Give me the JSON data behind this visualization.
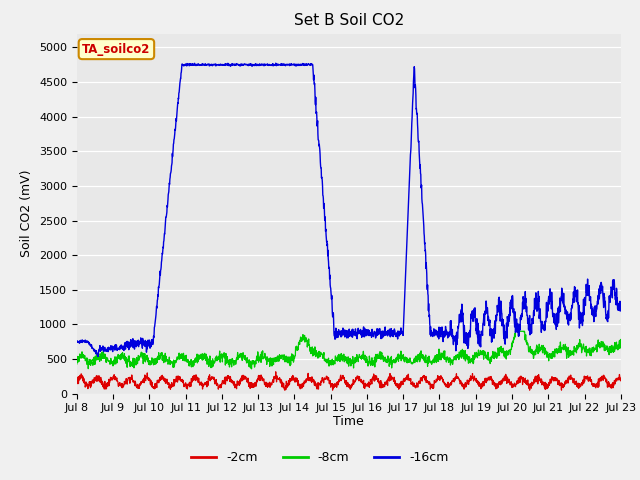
{
  "title": "Set B Soil CO2",
  "ylabel": "Soil CO2 (mV)",
  "xlabel": "Time",
  "tag_label": "TA_soilco2",
  "fig_facecolor": "#e8e8e8",
  "plot_facecolor": "#e8e8e8",
  "ylim": [
    0,
    5200
  ],
  "yticks": [
    0,
    500,
    1000,
    1500,
    2000,
    2500,
    3000,
    3500,
    4000,
    4500,
    5000
  ],
  "xlim": [
    0,
    15
  ],
  "xtick_labels": [
    "Jul 8",
    "Jul 9",
    "Jul 10",
    "Jul 11",
    "Jul 12",
    "Jul 13",
    "Jul 14",
    "Jul 15",
    "Jul 16",
    "Jul 17",
    "Jul 18",
    "Jul 19",
    "Jul 20",
    "Jul 21",
    "Jul 22",
    "Jul 23"
  ],
  "legend": [
    {
      "label": "-2cm",
      "color": "#dd0000"
    },
    {
      "label": "-8cm",
      "color": "#00cc00"
    },
    {
      "label": "-16cm",
      "color": "#0000dd"
    }
  ],
  "title_fontsize": 11,
  "label_fontsize": 9,
  "tick_fontsize": 8
}
